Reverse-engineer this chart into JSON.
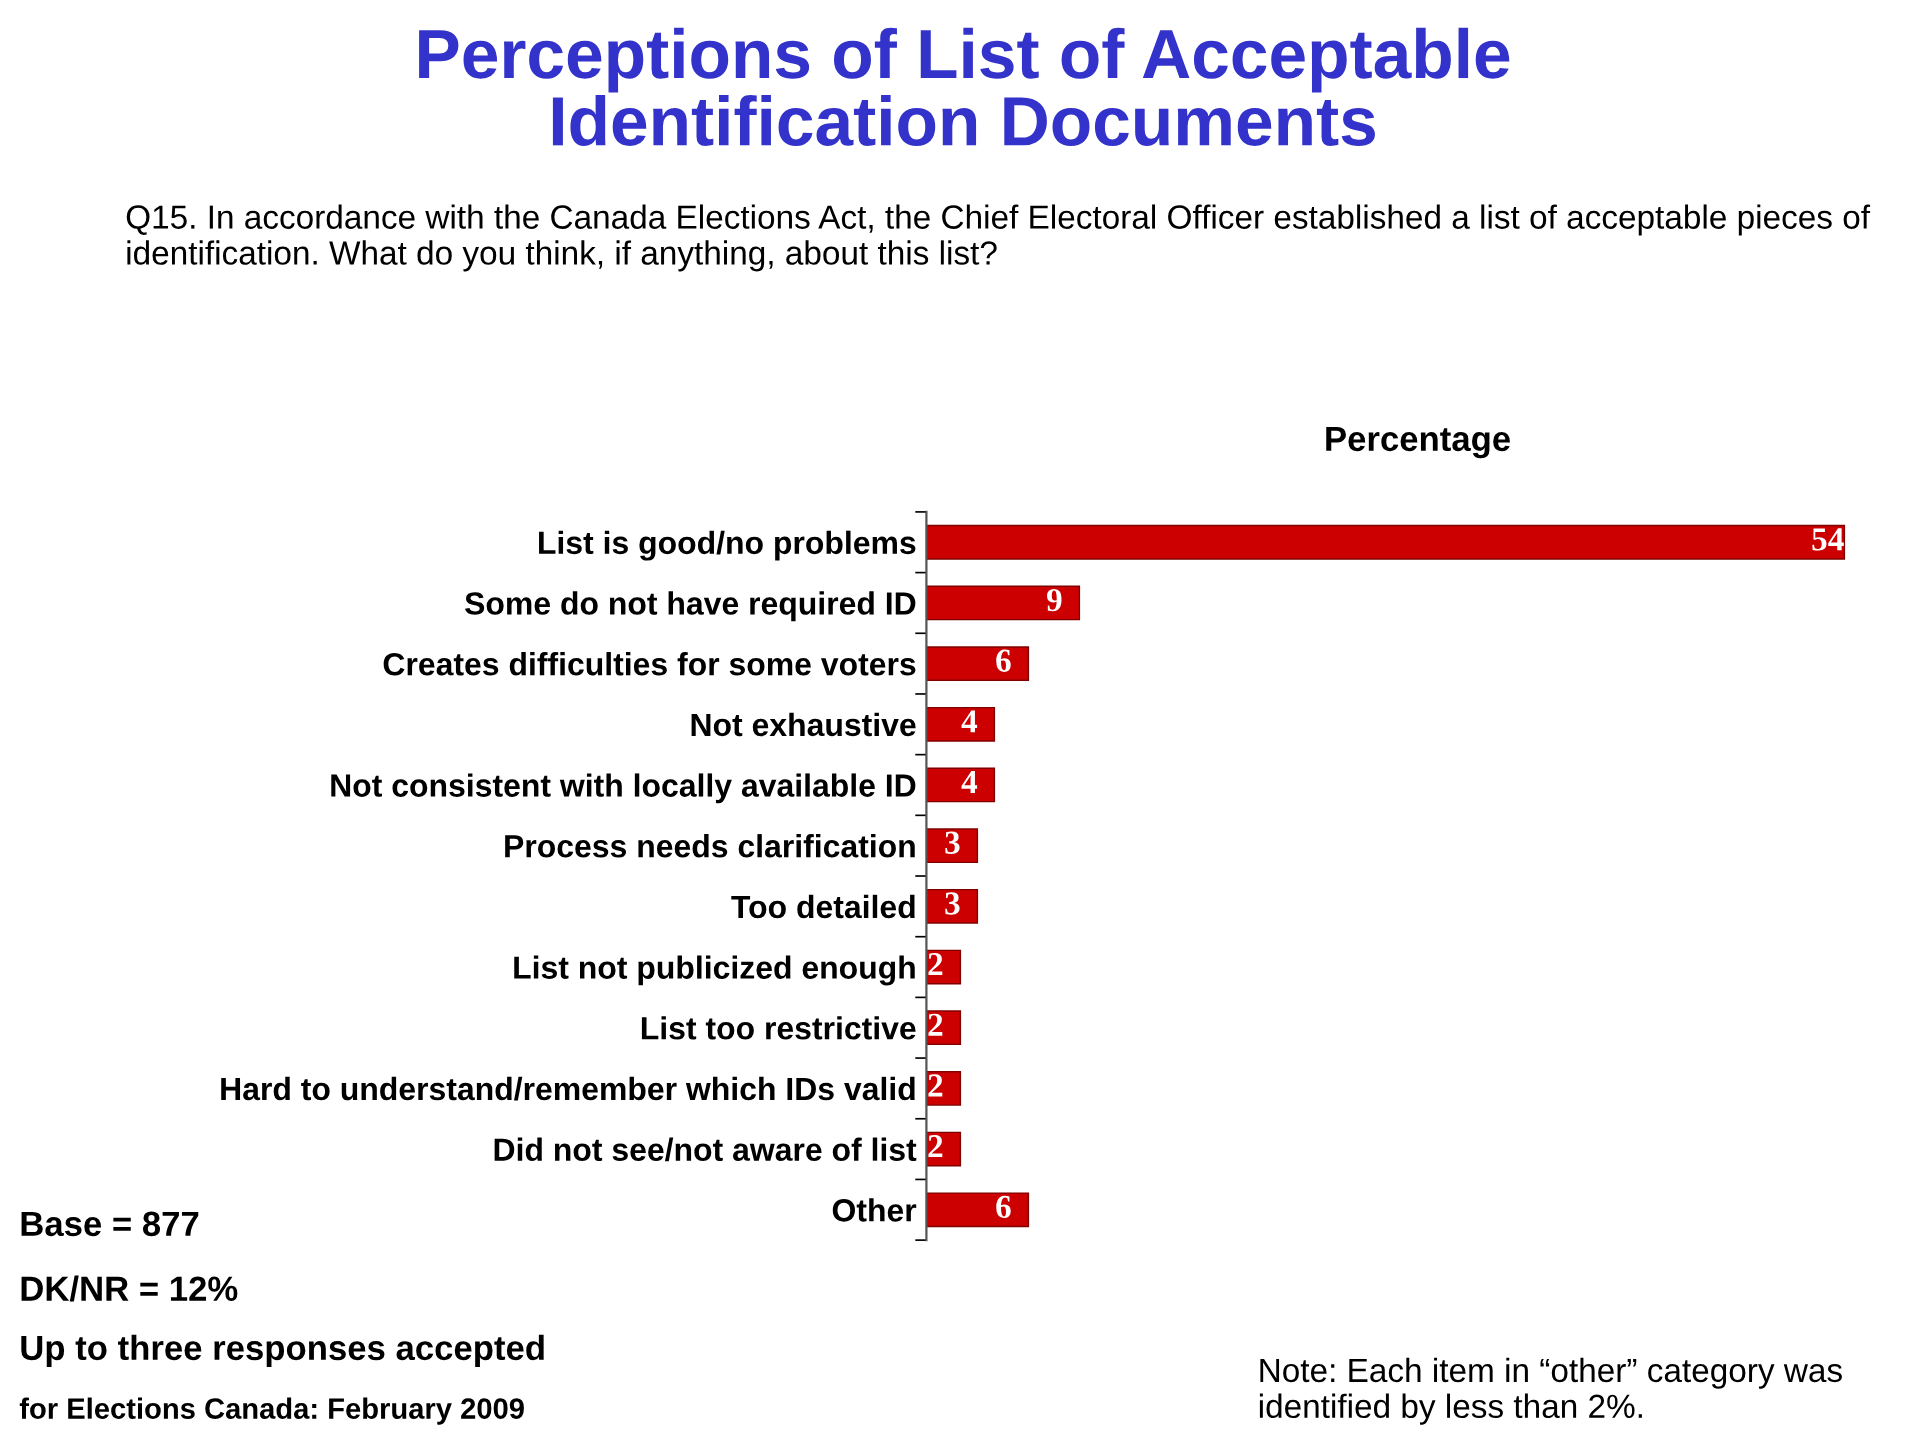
{
  "chart_data": {
    "type": "bar",
    "orientation": "horizontal",
    "title": "Perceptions of List of Acceptable\nIdentification Documents",
    "subtitle": "Q15. In accordance with the Canada Elections Act, the Chief Electoral Officer established a list of acceptable pieces of identification. What do you think, if anything, about this list?",
    "xlabel": "Percentage",
    "categories": [
      "List is good/no problems",
      "Some do not have required ID",
      "Creates difficulties for some voters",
      "Not exhaustive",
      "Not consistent with locally available ID",
      "Process needs clarification",
      "Too detailed",
      "List not publicized enough",
      "List too restrictive",
      "Hard to understand/remember which IDs valid",
      "Did not see/not aware of list",
      "Other"
    ],
    "values": [
      54,
      9,
      6,
      4,
      4,
      3,
      3,
      2,
      2,
      2,
      2,
      6
    ],
    "color": "#cc0000",
    "data_labels": true,
    "tick_labels": "y",
    "grid": false,
    "legend": false,
    "annotations": [
      "Base = 877",
      "DK/NR = 12%",
      "Up to three responses accepted",
      "for Elections Canada: February 2009",
      "Note: Each item in “other” category was identified by less than 2%."
    ]
  }
}
